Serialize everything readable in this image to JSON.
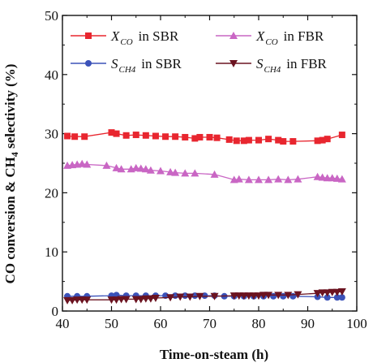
{
  "chart_data": {
    "type": "line",
    "xlabel": "Time-on-steam (h)",
    "ylabel": "CO conversion & CH4 selectivity (%)",
    "xlim": [
      40,
      100
    ],
    "ylim": [
      0,
      50
    ],
    "x_ticks": [
      "40",
      "50",
      "60",
      "70",
      "80",
      "90",
      "100"
    ],
    "y_ticks": [
      "0",
      "10",
      "20",
      "30",
      "40",
      "50"
    ],
    "grid": false,
    "legend_position": "top",
    "series": [
      {
        "name": "X_CO in SBR",
        "legend": {
          "var": "X",
          "sub": "CO",
          "suffix": "in SBR"
        },
        "color": "#e8262f",
        "marker": "square",
        "x": [
          41,
          42.5,
          44.5,
          50,
          51,
          53,
          55,
          57,
          59,
          61,
          63,
          65,
          67,
          68,
          70,
          71.5,
          74,
          75.5,
          77,
          78,
          80,
          82,
          84,
          85,
          87,
          92,
          93,
          94,
          97
        ],
        "y": [
          29.6,
          29.5,
          29.5,
          30.2,
          30.0,
          29.7,
          29.8,
          29.7,
          29.6,
          29.5,
          29.5,
          29.4,
          29.2,
          29.4,
          29.4,
          29.3,
          29.0,
          28.8,
          28.8,
          28.9,
          28.9,
          29.1,
          28.9,
          28.7,
          28.7,
          28.8,
          28.9,
          29.1,
          29.8
        ]
      },
      {
        "name": "X_CO in FBR",
        "legend": {
          "var": "X",
          "sub": "CO",
          "suffix": "in FBR"
        },
        "color": "#c966c4",
        "marker": "triangle-up",
        "x": [
          41,
          42,
          43,
          44,
          45,
          49,
          51,
          52,
          54,
          55,
          56,
          57,
          58,
          60,
          62,
          63,
          65,
          67,
          71,
          75,
          76,
          78,
          80,
          82,
          84,
          86,
          88,
          92,
          93,
          94,
          95,
          96,
          97
        ],
        "y": [
          24.6,
          24.7,
          24.8,
          24.9,
          24.8,
          24.6,
          24.2,
          24.0,
          24.0,
          24.2,
          24.1,
          24.0,
          23.8,
          23.7,
          23.5,
          23.4,
          23.3,
          23.3,
          23.1,
          22.2,
          22.3,
          22.2,
          22.2,
          22.2,
          22.3,
          22.2,
          22.3,
          22.7,
          22.6,
          22.5,
          22.5,
          22.4,
          22.3
        ]
      },
      {
        "name": "S_CH4 in SBR",
        "legend": {
          "var": "S",
          "sub": "CH4",
          "suffix": "in SBR"
        },
        "color": "#3b52b9",
        "marker": "circle",
        "x": [
          41,
          43,
          45,
          50,
          51,
          53,
          55,
          57,
          59,
          61,
          63,
          65,
          67,
          69,
          71,
          73,
          75,
          77,
          79,
          81,
          83,
          85,
          87,
          92,
          94,
          96,
          97
        ],
        "y": [
          2.5,
          2.5,
          2.5,
          2.6,
          2.7,
          2.6,
          2.6,
          2.6,
          2.6,
          2.6,
          2.6,
          2.6,
          2.6,
          2.6,
          2.6,
          2.5,
          2.5,
          2.5,
          2.5,
          2.5,
          2.5,
          2.5,
          2.5,
          2.4,
          2.3,
          2.3,
          2.3
        ]
      },
      {
        "name": "S_CH4 in FBR",
        "legend": {
          "var": "S",
          "sub": "CH4",
          "suffix": "in FBR"
        },
        "color": "#6b1320",
        "marker": "triangle-down",
        "x": [
          41,
          42,
          43,
          44,
          45,
          50,
          51,
          52,
          53,
          55,
          56,
          57,
          58,
          59,
          62,
          64,
          66,
          68,
          71,
          75,
          76,
          77,
          78,
          79,
          80,
          81,
          82,
          84,
          86,
          88,
          92,
          93,
          94,
          95,
          96,
          97
        ],
        "y": [
          1.8,
          1.8,
          1.9,
          1.9,
          1.9,
          1.9,
          1.9,
          2.0,
          2.0,
          2.0,
          2.0,
          2.1,
          2.1,
          2.2,
          2.3,
          2.4,
          2.4,
          2.5,
          2.5,
          2.6,
          2.6,
          2.6,
          2.6,
          2.6,
          2.6,
          2.7,
          2.7,
          2.7,
          2.7,
          2.8,
          3.0,
          3.1,
          3.1,
          3.2,
          3.2,
          3.3
        ]
      }
    ]
  }
}
